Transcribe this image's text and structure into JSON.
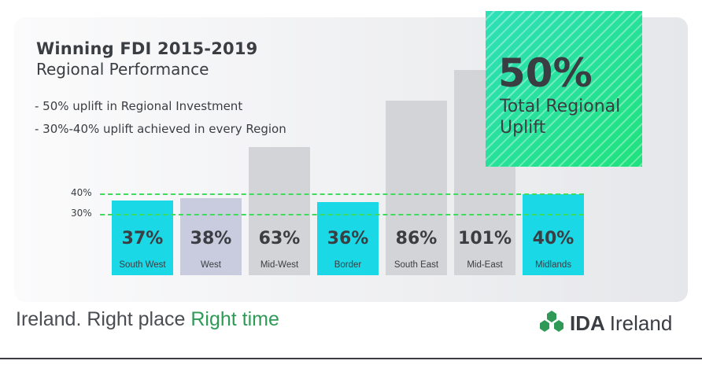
{
  "header": {
    "title": "Winning FDI 2015-2019",
    "subtitle": "Regional Performance",
    "bullets": [
      "- 50% uplift in Regional Investment",
      "- 30%-40% uplift achieved in every Region"
    ]
  },
  "highlight": {
    "value": "50%",
    "label": "Total Regional Uplift",
    "color": "#22e08a"
  },
  "colors": {
    "accent_bar": "#1ad8e6",
    "neutral_bar": "#c9cbde",
    "tall_bar": "#d3d4d8",
    "reference_line": "#3ddc5a",
    "text": "#3a3d42"
  },
  "chart_data": {
    "type": "bar",
    "categories": [
      "South West",
      "West",
      "Mid-West",
      "Border",
      "South East",
      "Mid-East",
      "Midlands"
    ],
    "values": [
      37,
      38,
      63,
      36,
      86,
      101,
      40
    ],
    "value_labels": [
      "37%",
      "38%",
      "63%",
      "36%",
      "86%",
      "101%",
      "40%"
    ],
    "reference_lines": [
      {
        "label": "40%",
        "value": 40
      },
      {
        "label": "30%",
        "value": 30
      }
    ],
    "grid": false
  },
  "footer": {
    "tagline_main": "Ireland. Right place",
    "tagline_accent": "Right time",
    "brand_strong": "IDA",
    "brand_light": "Ireland",
    "brand_icon": "ida-logo-icon"
  }
}
